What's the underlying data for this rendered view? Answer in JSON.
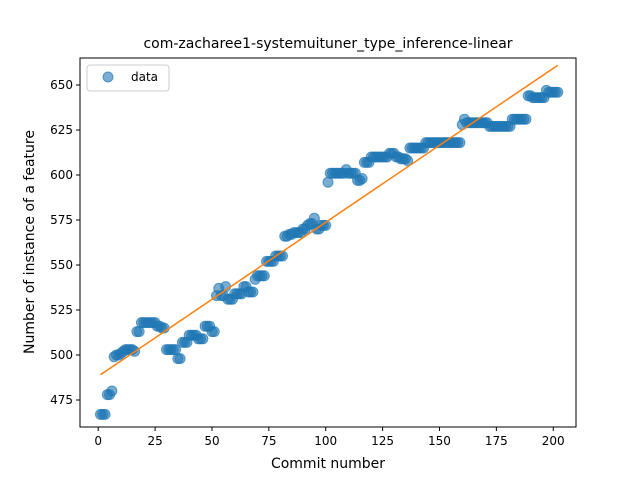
{
  "chart_data": {
    "type": "scatter",
    "title": "com-zacharee1-systemuituner_type_inference-linear",
    "xlabel": "Commit number",
    "ylabel": "Number of instance of a feature",
    "xlim": [
      -8,
      210
    ],
    "ylim": [
      460,
      665
    ],
    "xticks": [
      0,
      25,
      50,
      75,
      100,
      125,
      150,
      175,
      200
    ],
    "yticks": [
      475,
      500,
      525,
      550,
      575,
      600,
      625,
      650
    ],
    "legend": {
      "position": "top-left",
      "entries": [
        "data"
      ]
    },
    "grid": false,
    "colors": {
      "points": "#1f77b4",
      "fit": "#ff7f0e"
    },
    "series": [
      {
        "name": "data",
        "kind": "scatter",
        "x": [
          1,
          2,
          3,
          4,
          5,
          6,
          7,
          8,
          9,
          10,
          11,
          12,
          13,
          14,
          15,
          16,
          17,
          18,
          19,
          20,
          21,
          22,
          23,
          24,
          25,
          26,
          27,
          28,
          29,
          30,
          31,
          32,
          33,
          34,
          35,
          36,
          37,
          38,
          39,
          40,
          41,
          42,
          43,
          44,
          45,
          46,
          47,
          48,
          49,
          50,
          51,
          52,
          53,
          54,
          55,
          56,
          57,
          58,
          59,
          60,
          61,
          62,
          63,
          64,
          65,
          66,
          67,
          68,
          69,
          70,
          71,
          72,
          73,
          74,
          75,
          76,
          77,
          78,
          79,
          80,
          81,
          82,
          83,
          84,
          85,
          86,
          87,
          88,
          89,
          90,
          91,
          92,
          93,
          94,
          95,
          96,
          97,
          98,
          99,
          100,
          101,
          102,
          103,
          104,
          105,
          106,
          107,
          108,
          109,
          110,
          111,
          112,
          113,
          114,
          115,
          116,
          117,
          118,
          119,
          120,
          121,
          122,
          123,
          124,
          125,
          126,
          127,
          128,
          129,
          130,
          131,
          132,
          133,
          134,
          135,
          136,
          137,
          138,
          139,
          140,
          141,
          142,
          143,
          144,
          145,
          146,
          147,
          148,
          149,
          150,
          151,
          152,
          153,
          154,
          155,
          156,
          157,
          158,
          159,
          160,
          161,
          162,
          163,
          164,
          165,
          166,
          167,
          168,
          169,
          170,
          171,
          172,
          173,
          174,
          175,
          176,
          177,
          178,
          179,
          180,
          181,
          182,
          183,
          184,
          185,
          186,
          187,
          188,
          189,
          190,
          191,
          192,
          193,
          194,
          195,
          196,
          197,
          198,
          199,
          200,
          201,
          202
        ],
        "y": [
          467,
          467,
          467,
          478,
          478,
          480,
          499,
          500,
          500,
          501,
          502,
          503,
          503,
          503,
          503,
          502,
          513,
          513,
          518,
          518,
          518,
          518,
          518,
          518,
          518,
          516,
          516,
          515,
          515,
          503,
          503,
          503,
          503,
          503,
          498,
          498,
          507,
          507,
          507,
          511,
          511,
          511,
          511,
          509,
          509,
          509,
          516,
          516,
          516,
          513,
          513,
          533,
          537,
          533,
          533,
          538,
          531,
          531,
          531,
          534,
          534,
          534,
          534,
          538,
          538,
          535,
          535,
          535,
          542,
          544,
          544,
          544,
          544,
          552,
          552,
          552,
          552,
          555,
          555,
          555,
          555,
          566,
          566,
          567,
          567,
          568,
          568,
          568,
          568,
          570,
          570,
          572,
          573,
          573,
          576,
          570,
          570,
          572,
          572,
          572,
          596,
          601,
          601,
          601,
          601,
          601,
          601,
          601,
          603,
          601,
          601,
          601,
          601,
          597,
          597,
          598,
          607,
          607,
          607,
          610,
          610,
          610,
          610,
          610,
          610,
          610,
          610,
          612,
          612,
          612,
          610,
          610,
          609,
          609,
          609,
          608,
          615,
          615,
          615,
          615,
          615,
          615,
          615,
          618,
          618,
          618,
          618,
          618,
          618,
          618,
          618,
          618,
          618,
          618,
          618,
          618,
          618,
          618,
          618,
          628,
          631,
          629,
          629,
          629,
          629,
          629,
          629,
          629,
          629,
          629,
          629,
          627,
          627,
          627,
          627,
          627,
          627,
          627,
          627,
          627,
          627,
          631,
          631,
          631,
          631,
          631,
          631,
          631,
          644,
          644,
          643,
          643,
          643,
          643,
          643,
          643,
          647,
          646,
          646,
          646,
          646,
          646
        ]
      },
      {
        "name": "",
        "kind": "line",
        "x": [
          1,
          202
        ],
        "y": [
          489,
          661
        ]
      }
    ]
  }
}
